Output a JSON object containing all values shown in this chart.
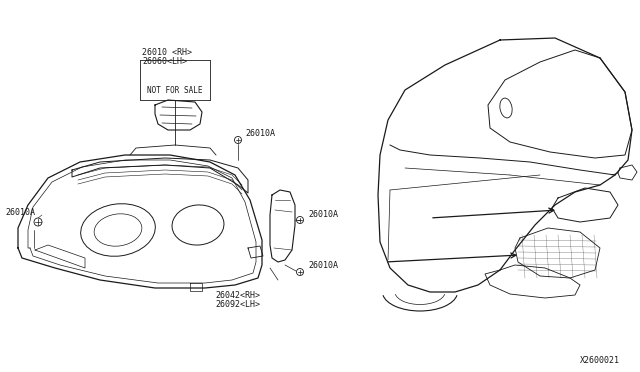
{
  "background_color": "#ffffff",
  "diagram_color": "#1a1a1a",
  "labels": {
    "top_part_rh": "26010 <RH>",
    "top_part_lh": "26060<LH>",
    "not_for_sale": "NOT FOR SALE",
    "bottom_part_rh": "26042<RH>",
    "bottom_part_lh": "26092<LH>",
    "bolt1": "26010A",
    "bolt2": "26010A",
    "bolt3": "26010A",
    "bolt4": "26010A",
    "diagram_id": "X2600021"
  },
  "fig_width": 6.4,
  "fig_height": 3.72,
  "dpi": 100
}
